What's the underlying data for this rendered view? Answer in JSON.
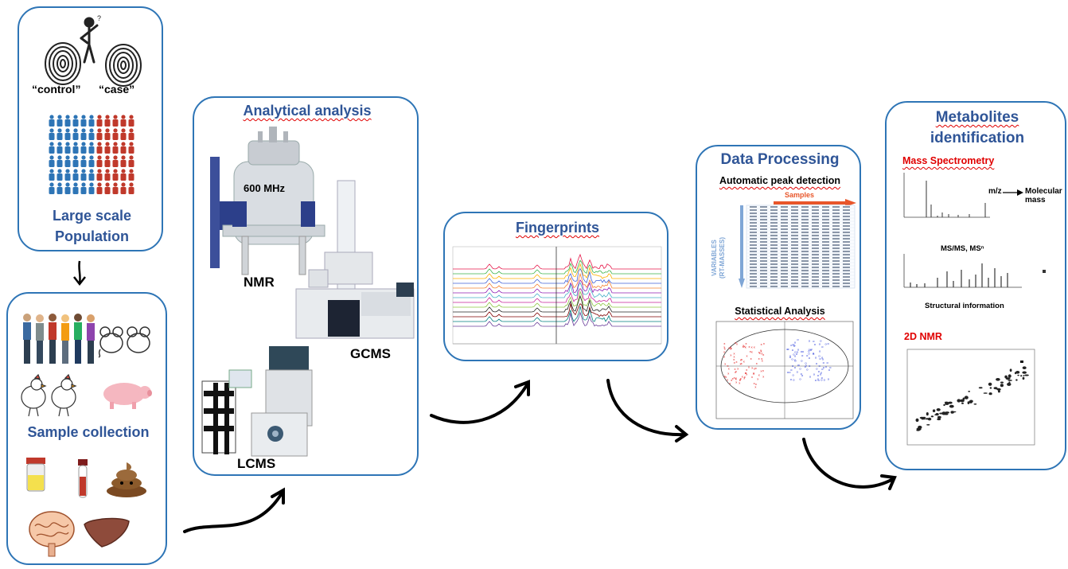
{
  "population": {
    "title_line1": "Large scale",
    "title_line2": "Population",
    "control_label": "“control”",
    "case_label": "“case”"
  },
  "sample": {
    "title": "Sample collection"
  },
  "analysis": {
    "title": "Analytical analysis",
    "nmr_freq": "600 MHz",
    "nmr_label": "NMR",
    "gcms_label": "GCMS",
    "lcms_label": "LCMS"
  },
  "fingerprints": {
    "title": "Fingerprints"
  },
  "processing": {
    "title": "Data Processing",
    "peak_title": "Automatic peak detection",
    "samples_label": "Samples",
    "variables_label": "VARIABLES",
    "rt_label": "(RT-MASSES)",
    "stats_title": "Statistical Analysis"
  },
  "identification": {
    "title_line1": "Metabolites",
    "title_line2": "identification",
    "ms_title": "Mass Spectrometry",
    "mz_label": "m/z",
    "molecular_mass": "Molecular mass",
    "msms_label": "MS/MS, MSⁿ",
    "structural_label": "Structural information",
    "nmr2d_title": "2D NMR"
  },
  "colors": {
    "frame": "#2e75b6",
    "title": "#2f5597",
    "control": "#2e75b6",
    "case": "#c0392b",
    "accent_red": "#e00000"
  }
}
